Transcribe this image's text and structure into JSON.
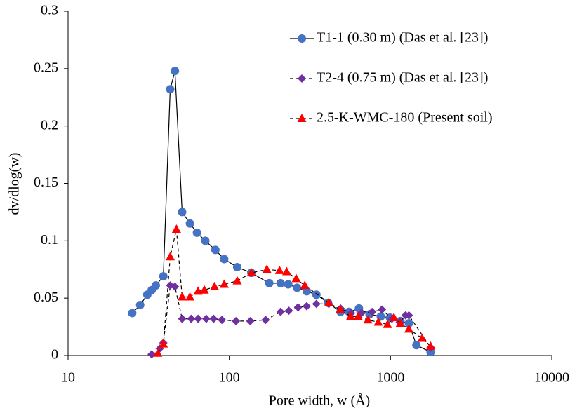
{
  "chart_data": {
    "type": "line",
    "x_label": "Pore width, w (Å)",
    "y_label": "dv/dlog(w)",
    "xlim": [
      10,
      10000
    ],
    "xticks": [
      10,
      100,
      1000,
      10000
    ],
    "x_log": true,
    "ylim": [
      0,
      0.3
    ],
    "yticks": [
      0,
      0.05,
      0.1,
      0.15,
      0.2,
      0.25,
      0.3
    ],
    "grid": false,
    "legend": "upper right",
    "line_color": "#000000",
    "series": [
      {
        "name": "T1-1 (0.30 m) (Das et al. [23])",
        "color": "#4472c4",
        "marker": "circle",
        "line_style": "solid",
        "x": [
          25,
          28,
          31,
          33,
          35,
          39,
          43,
          46,
          51,
          57,
          63,
          71,
          82,
          93,
          112,
          137,
          177,
          208,
          232,
          263,
          302,
          347,
          410,
          490,
          553,
          637,
          741,
          870,
          991,
          1152,
          1300,
          1447,
          1773
        ],
        "values": [
          0.037,
          0.044,
          0.053,
          0.057,
          0.061,
          0.069,
          0.232,
          0.248,
          0.125,
          0.115,
          0.107,
          0.1,
          0.092,
          0.084,
          0.077,
          0.072,
          0.063,
          0.063,
          0.062,
          0.059,
          0.056,
          0.053,
          0.046,
          0.038,
          0.038,
          0.041,
          0.036,
          0.034,
          0.033,
          0.03,
          0.028,
          0.009,
          0.003
        ]
      },
      {
        "name": "T2-4 (0.75 m) (Das et al. [23])",
        "color": "#7030a0",
        "marker": "diamond",
        "line_style": "dashed",
        "x": [
          33,
          37,
          39,
          43,
          46,
          51,
          58,
          64,
          72,
          80,
          90,
          110,
          135,
          168,
          208,
          234,
          267,
          302,
          347,
          414,
          490,
          570,
          660,
          770,
          885,
          1020,
          1140,
          1240,
          1300,
          1773
        ],
        "values": [
          0.001,
          0.006,
          0.011,
          0.061,
          0.06,
          0.032,
          0.032,
          0.032,
          0.032,
          0.032,
          0.031,
          0.03,
          0.03,
          0.031,
          0.038,
          0.039,
          0.042,
          0.043,
          0.045,
          0.045,
          0.041,
          0.037,
          0.037,
          0.038,
          0.04,
          0.032,
          0.029,
          0.035,
          0.035,
          0.007
        ]
      },
      {
        "name": "2.5-K-WMC-180 (Present soil)",
        "color": "#ff0000",
        "marker": "triangle",
        "line_style": "dashed",
        "x": [
          36,
          39,
          43,
          47,
          51,
          57,
          64,
          70,
          81,
          93,
          112,
          137,
          171,
          205,
          227,
          260,
          294,
          414,
          487,
          565,
          630,
          725,
          840,
          958,
          1050,
          1150,
          1300,
          1570,
          1773
        ],
        "values": [
          0.002,
          0.01,
          0.086,
          0.11,
          0.051,
          0.051,
          0.056,
          0.057,
          0.06,
          0.062,
          0.065,
          0.072,
          0.075,
          0.074,
          0.073,
          0.067,
          0.061,
          0.046,
          0.04,
          0.034,
          0.034,
          0.031,
          0.029,
          0.027,
          0.033,
          0.028,
          0.023,
          0.015,
          0.008
        ]
      }
    ]
  }
}
